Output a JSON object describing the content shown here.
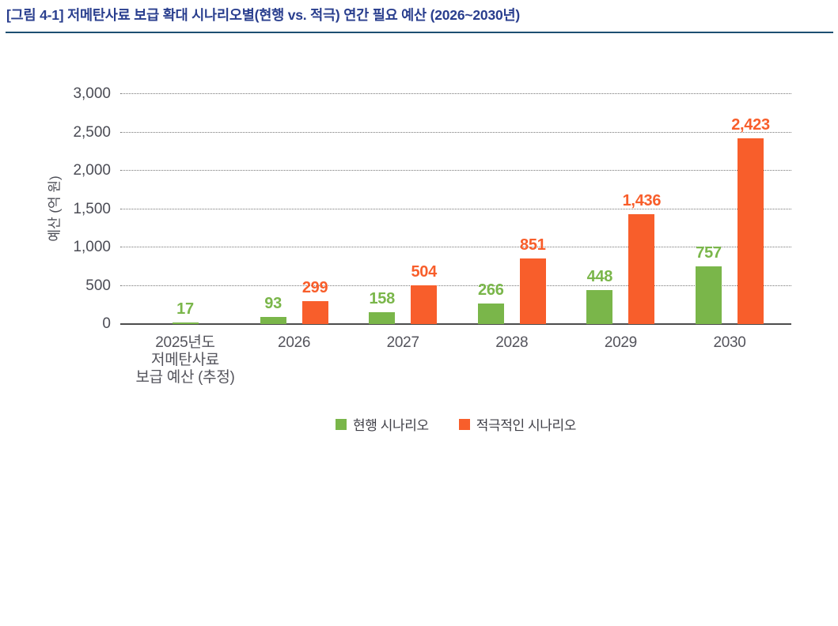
{
  "page": {
    "title": "[그림 4-1] 저메탄사료 보급 확대 시나리오별(현행 vs. 적극) 연간 필요 예산 (2026~2030년)"
  },
  "chart_data": {
    "type": "bar",
    "title": "[그림 4-1] 저메탄사료 보급 확대 시나리오별(현행 vs. 적극) 연간 필요 예산 (2026~2030년)",
    "ylabel": "예산 (억 원)",
    "xlabel": "",
    "ylim": [
      0,
      3000
    ],
    "ytick_step": 500,
    "grid": "horizontal-dotted",
    "legend_position": "bottom-center",
    "categories": [
      "2025년도\n저메탄사료\n보급 예산 (추정)",
      "2026",
      "2027",
      "2028",
      "2029",
      "2030"
    ],
    "series": [
      {
        "name": "현행 시나리오",
        "color": "#7ab64a",
        "values": [
          17,
          93,
          158,
          266,
          448,
          757
        ]
      },
      {
        "name": "적극적인 시나리오",
        "color": "#f85e2b",
        "values": [
          null,
          299,
          504,
          851,
          1436,
          2423
        ]
      }
    ]
  },
  "colors": {
    "title": "#293e8e",
    "divider": "#1d4f72",
    "axis": "#4c4c4c",
    "tick_label": "#4b4c55",
    "category_label": "#54545c",
    "legend_label": "#3f3f47"
  }
}
